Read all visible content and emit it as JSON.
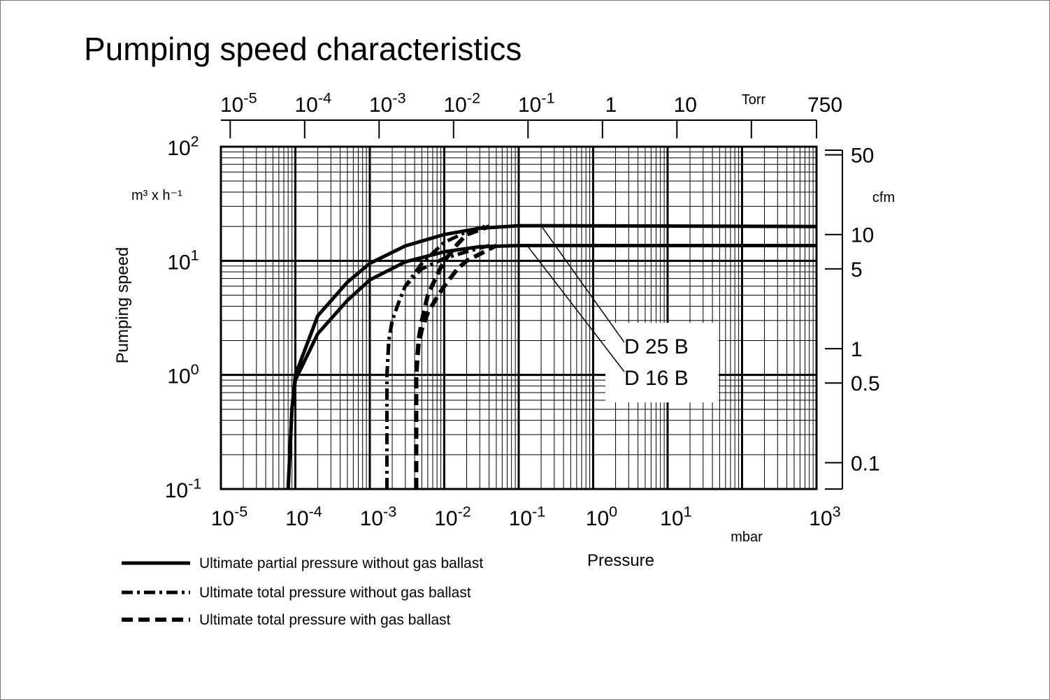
{
  "chart_data": {
    "type": "line",
    "title": "Pumping speed characteristics",
    "xlabel": "Pressure",
    "xunit": "mbar",
    "ylabel": "Pumping speed",
    "yunit": "m³ x h⁻¹",
    "x_scale": "log",
    "y_scale": "log",
    "xlim": [
      1e-05,
      1000
    ],
    "ylim": [
      0.1,
      100
    ],
    "grid": true,
    "x_ticks": [
      {
        "base": "10",
        "exp": "-5",
        "value": 1e-05
      },
      {
        "base": "10",
        "exp": "-4",
        "value": 0.0001
      },
      {
        "base": "10",
        "exp": "-3",
        "value": 0.001
      },
      {
        "base": "10",
        "exp": "-2",
        "value": 0.01
      },
      {
        "base": "10",
        "exp": "-1",
        "value": 0.1
      },
      {
        "base": "10",
        "exp": "0",
        "value": 1
      },
      {
        "base": "10",
        "exp": "1",
        "value": 10
      },
      {
        "base": "10",
        "exp": "3",
        "value": 1000
      }
    ],
    "y_ticks": [
      {
        "base": "10",
        "exp": "2",
        "value": 100
      },
      {
        "base": "10",
        "exp": "1",
        "value": 10
      },
      {
        "base": "10",
        "exp": "0",
        "value": 1
      },
      {
        "base": "10",
        "exp": "-1",
        "value": 0.1
      }
    ],
    "top_axis": {
      "unit": "Torr",
      "ticks": [
        {
          "base": "10",
          "exp": "-5",
          "value": 1e-05
        },
        {
          "base": "10",
          "exp": "-4",
          "value": 0.0001
        },
        {
          "base": "10",
          "exp": "-3",
          "value": 0.001
        },
        {
          "base": "10",
          "exp": "-2",
          "value": 0.01
        },
        {
          "base": "10",
          "exp": "-1",
          "value": 0.1
        },
        {
          "base": "1",
          "exp": "",
          "value": 1
        },
        {
          "base": "10",
          "exp": "",
          "value": 10
        },
        {
          "base": "",
          "exp": "",
          "value": 100
        },
        {
          "base": "750",
          "exp": "",
          "value": 750
        }
      ]
    },
    "right_axis": {
      "unit": "cfm",
      "ticks": [
        {
          "label": "50",
          "value": 50
        },
        {
          "label": "10",
          "value": 10
        },
        {
          "label": "5",
          "value": 5
        },
        {
          "label": "1",
          "value": 1
        },
        {
          "label": "0.5",
          "value": 0.5
        },
        {
          "label": "0.1",
          "value": 0.1
        }
      ]
    },
    "series": [
      {
        "name": "D 25 B",
        "style": "solid",
        "x": [
          8e-05,
          9e-05,
          0.0001,
          0.0002,
          0.0005,
          0.001,
          0.003,
          0.01,
          0.03,
          0.1,
          0.2,
          1000
        ],
        "y": [
          0.1,
          0.5,
          1,
          3.3,
          6.5,
          9.5,
          13.5,
          17,
          19.3,
          20.3,
          20.3,
          20
        ]
      },
      {
        "name": "D 16 B",
        "style": "solid",
        "x": [
          8e-05,
          9e-05,
          0.0001,
          0.0002,
          0.0005,
          0.001,
          0.003,
          0.01,
          0.03,
          0.1,
          1000
        ],
        "y": [
          0.1,
          0.5,
          0.9,
          2.3,
          4.5,
          6.8,
          9.8,
          12,
          13.3,
          13.6,
          13.6
        ]
      },
      {
        "name": "D 25 B",
        "style": "dashdot",
        "x": [
          0.0017,
          0.0017,
          0.0018,
          0.002,
          0.0025,
          0.003,
          0.005,
          0.01,
          0.02,
          0.035
        ],
        "y": [
          0.1,
          1,
          2,
          3,
          4.5,
          6,
          9.5,
          14.5,
          18,
          20
        ]
      },
      {
        "name": "D 16 B",
        "style": "dashdot",
        "x": [
          0.0017,
          0.0017,
          0.0018,
          0.002,
          0.0025,
          0.003,
          0.005,
          0.01,
          0.02,
          0.04
        ],
        "y": [
          0.1,
          1,
          2,
          3,
          4.5,
          6,
          8.5,
          10.5,
          12,
          13.6
        ]
      },
      {
        "name": "D 25 B",
        "style": "dashed",
        "x": [
          0.0042,
          0.0042,
          0.0045,
          0.005,
          0.006,
          0.008,
          0.01,
          0.015,
          0.02,
          0.04
        ],
        "y": [
          0.1,
          1,
          2,
          3,
          5,
          7.5,
          10,
          14,
          17,
          20
        ]
      },
      {
        "name": "D 16 B",
        "style": "dashed",
        "x": [
          0.0042,
          0.0042,
          0.0045,
          0.005,
          0.006,
          0.008,
          0.01,
          0.015,
          0.02,
          0.05
        ],
        "y": [
          0.1,
          1,
          1.8,
          2.5,
          3.5,
          4.8,
          6,
          8.5,
          10,
          13.6
        ]
      }
    ],
    "annotations": [
      "D 25 B",
      "D 16 B"
    ],
    "legend": [
      {
        "style": "solid",
        "label": "Ultimate partial pressure without gas ballast"
      },
      {
        "style": "dashdot",
        "label": "Ultimate total pressure without gas ballast"
      },
      {
        "style": "dashed",
        "label": "Ultimate total pressure with gas ballast"
      }
    ]
  }
}
